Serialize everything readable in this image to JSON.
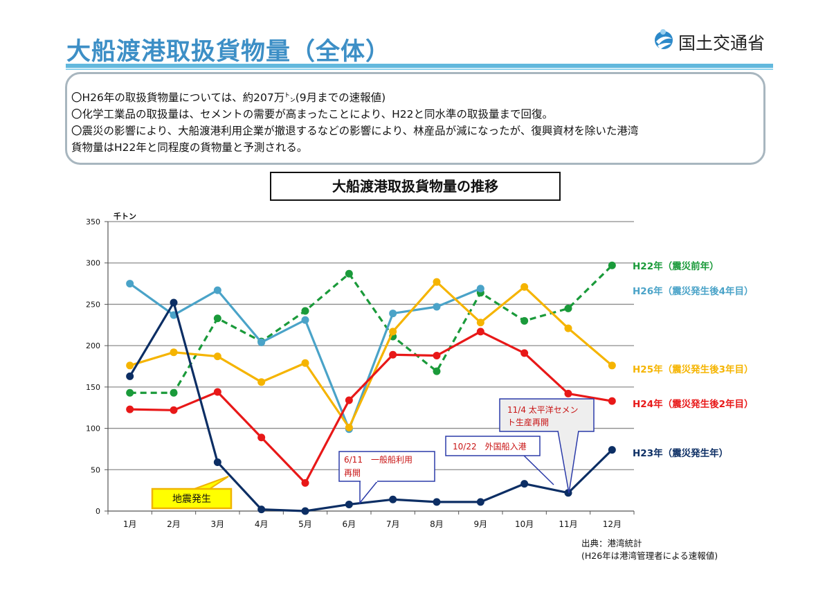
{
  "header": {
    "title": "大船渡港取扱貨物量（全体）",
    "logo_text": "国土交通省"
  },
  "summary": {
    "lines": [
      "〇H26年の取扱貨物量については、約207万㌧(9月までの速報値)",
      "〇化学工業品の取扱量は、セメントの需要が高まったことにより、H22と同水準の取扱量まで回復。",
      "〇震災の影響により、大船渡港利用企業が撤退するなどの影響により、林産品が減になったが、復興資材を除いた港湾",
      "貨物量はH22年と同程度の貨物量と予測される。"
    ]
  },
  "chart_data": {
    "type": "line",
    "title": "大船渡港取扱貨物量の推移",
    "ylabel": "千トン",
    "categories": [
      "1月",
      "2月",
      "3月",
      "4月",
      "5月",
      "6月",
      "7月",
      "8月",
      "9月",
      "10月",
      "11月",
      "12月"
    ],
    "ylim": [
      0,
      350
    ],
    "yticks": [
      0,
      50,
      100,
      150,
      200,
      250,
      300,
      350
    ],
    "grid": true,
    "series": [
      {
        "name": "H22年（震災前年）",
        "color": "#1a9a3a",
        "dashed": true,
        "values": [
          143,
          143,
          233,
          205,
          242,
          287,
          211,
          169,
          264,
          230,
          245,
          297
        ]
      },
      {
        "name": "H26年（震災発生後4年目）",
        "color": "#4aa3c8",
        "dashed": false,
        "values": [
          275,
          237,
          267,
          204,
          231,
          99,
          239,
          247,
          269,
          null,
          null,
          null
        ]
      },
      {
        "name": "H25年（震災発生後3年目）",
        "color": "#f5b400",
        "dashed": false,
        "values": [
          176,
          192,
          187,
          156,
          179,
          101,
          217,
          277,
          228,
          271,
          221,
          176
        ]
      },
      {
        "name": "H24年（震災発生後2年目）",
        "color": "#e81818",
        "dashed": false,
        "values": [
          123,
          122,
          144,
          89,
          34,
          134,
          189,
          188,
          217,
          191,
          142,
          133
        ]
      },
      {
        "name": "H23年（震災発生年）",
        "color": "#0c2e64",
        "dashed": false,
        "values": [
          163,
          252,
          59,
          2,
          0,
          8,
          14,
          11,
          11,
          33,
          22,
          74
        ]
      }
    ],
    "legend_placement": "right",
    "annotations": [
      {
        "text": "地震発生",
        "style": "yellow"
      },
      {
        "text": "6/11　一般船利用再開",
        "style": "callout"
      },
      {
        "text": "10/22　外国船入港",
        "style": "callout"
      },
      {
        "text": "11/4　太平洋セメント生産再開",
        "style": "callout"
      }
    ]
  },
  "source": {
    "line1": "出典：港湾統計",
    "line2": "(H26年は港湾管理者による速報値)"
  }
}
